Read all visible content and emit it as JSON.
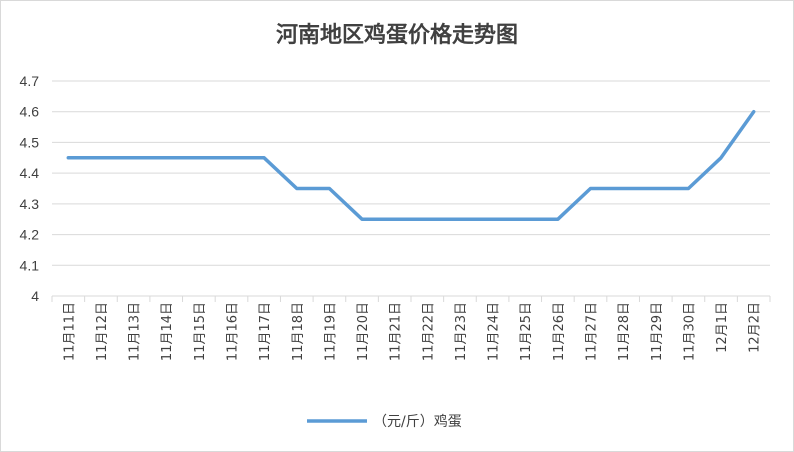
{
  "chart_data": {
    "type": "line",
    "title": "河南地区鸡蛋价格走势图",
    "xlabel": "",
    "ylabel": "",
    "ylim": [
      4,
      4.7
    ],
    "yticks": [
      "4",
      "4.1",
      "4.2",
      "4.3",
      "4.4",
      "4.5",
      "4.6",
      "4.7"
    ],
    "categories": [
      "11月11日",
      "11月12日",
      "11月13日",
      "11月14日",
      "11月15日",
      "11月16日",
      "11月17日",
      "11月18日",
      "11月19日",
      "11月20日",
      "11月21日",
      "11月22日",
      "11月23日",
      "11月24日",
      "11月25日",
      "11月26日",
      "11月27日",
      "11月28日",
      "11月29日",
      "11月30日",
      "12月1日",
      "12月2日"
    ],
    "series": [
      {
        "name": "（元/斤）鸡蛋",
        "color": "#5b9bd5",
        "values": [
          4.45,
          4.45,
          4.45,
          4.45,
          4.45,
          4.45,
          4.45,
          4.35,
          4.35,
          4.25,
          4.25,
          4.25,
          4.25,
          4.25,
          4.25,
          4.25,
          4.35,
          4.35,
          4.35,
          4.35,
          4.45,
          4.6
        ]
      }
    ],
    "grid": true,
    "legend_position": "bottom"
  }
}
